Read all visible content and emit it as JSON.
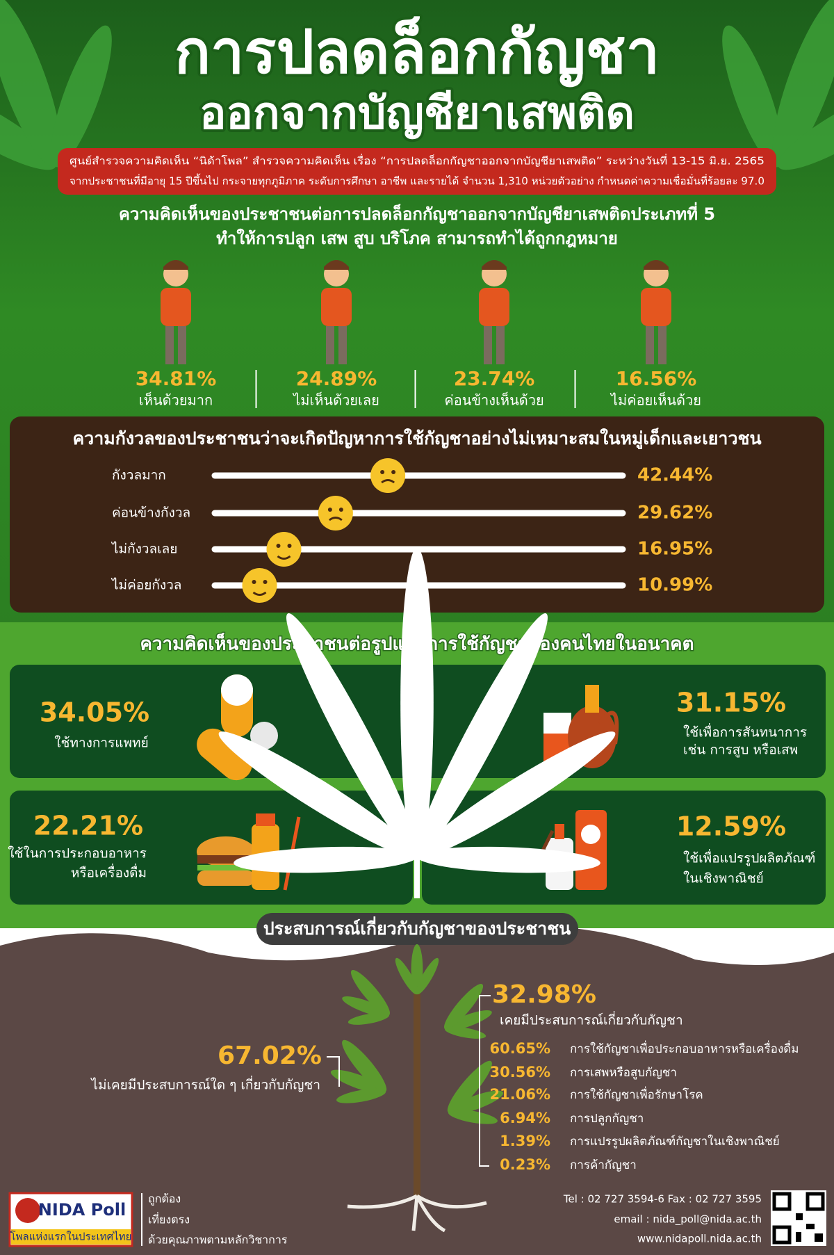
{
  "header": {
    "title_line1": "การปลดล็อกกัญชา",
    "title_line2": "ออกจากบัญชียาเสพติด",
    "survey_note": [
      "ศูนย์สำรวจความคิดเห็น “นิด้าโพล” สำรวจความคิดเห็น เรื่อง “การปลดล็อกกัญชาออกจากบัญชียาเสพติด” ระหว่างวันที่ 13-15 มิ.ย. 2565",
      "จากประชาชนที่มีอายุ 15 ปีขึ้นไป กระจายทุกภูมิภาค ระดับการศึกษา อาชีพ และรายได้ จำนวน 1,310 หน่วยตัวอย่าง กำหนดค่าความเชื่อมั่นที่ร้อยละ 97.0"
    ]
  },
  "opinion": {
    "heading": [
      "ความคิดเห็นของประชาชนต่อการปลดล็อกกัญชาออกจากบัญชียาเสพติดประเภทที่ 5",
      "ทำให้การปลูก เสพ สูบ บริโภค สามารถทำได้ถูกกฎหมาย"
    ],
    "items": [
      {
        "value_label": "34.81%",
        "label": "เห็นด้วยมาก"
      },
      {
        "value_label": "24.89%",
        "label": "ไม่เห็นด้วยเลย"
      },
      {
        "value_label": "23.74%",
        "label": "ค่อนข้างเห็นด้วย"
      },
      {
        "value_label": "16.56%",
        "label": "ไม่ค่อยเห็นด้วย"
      }
    ]
  },
  "worry": {
    "heading": "ความกังวลของประชาชนว่าจะเกิดปัญหาการใช้กัญชาอย่างไม่เหมาะสมในหมู่เด็กและเยาวชน",
    "items": [
      {
        "label": "กังวลมาก",
        "value": 42.44,
        "value_label": "42.44%"
      },
      {
        "label": "ค่อนข้างกังวล",
        "value": 29.62,
        "value_label": "29.62%"
      },
      {
        "label": "ไม่กังวลเลย",
        "value": 16.95,
        "value_label": "16.95%"
      },
      {
        "label": "ไม่ค่อยกังวล",
        "value": 10.99,
        "value_label": "10.99%"
      }
    ]
  },
  "usage": {
    "heading": "ความคิดเห็นของประชาชนต่อรูปแบบการใช้กัญชาของคนไทยในอนาคต",
    "items": [
      {
        "value_label": "34.05%",
        "label": [
          "ใช้ทางการแพทย์"
        ]
      },
      {
        "value_label": "31.15%",
        "label": [
          "ใช้เพื่อการสันทนาการ",
          "เช่น การสูบ หรือเสพ"
        ]
      },
      {
        "value_label": "22.21%",
        "label": [
          "ใช้ในการประกอบอาหาร",
          "หรือเครื่องดื่ม"
        ]
      },
      {
        "value_label": "12.59%",
        "label": [
          "ใช้เพื่อแปรรูปผลิตภัณฑ์",
          "ในเชิงพาณิชย์"
        ]
      }
    ]
  },
  "experience": {
    "heading": "ประสบการณ์เกี่ยวกับกัญชาของประชาชน",
    "never": {
      "value_label": "67.02%",
      "label": "ไม่เคยมีประสบการณ์ใด ๆ เกี่ยวกับกัญชา"
    },
    "ever": {
      "value_label": "32.98%",
      "label": "เคยมีประสบการณ์เกี่ยวกับกัญชา",
      "items": [
        {
          "value_label": "60.65%",
          "label": "การใช้กัญชาเพื่อประกอบอาหารหรือเครื่องดื่ม"
        },
        {
          "value_label": "30.56%",
          "label": "การเสพหรือสูบกัญชา"
        },
        {
          "value_label": "21.06%",
          "label": "การใช้กัญชาเพื่อรักษาโรค"
        },
        {
          "value_label": "6.94%",
          "label": "การปลูกกัญชา"
        },
        {
          "value_label": "1.39%",
          "label": "การแปรรูปผลิตภัณฑ์กัญชาในเชิงพาณิชย์"
        },
        {
          "value_label": "0.23%",
          "label": "การค้ากัญชา"
        }
      ]
    }
  },
  "footer": {
    "logo": "NIDA Poll",
    "tagline": "โพลแห่งแรกในประเทศไทย",
    "motto": [
      "ถูกต้อง",
      "เที่ยงตรง",
      "ด้วยคุณภาพตามหลักวิชาการ"
    ],
    "contact": [
      "Tel : 02 727 3594-6 Fax : 02 727 3595",
      "email : nida_poll@nida.ac.th",
      "www.nidapoll.nida.ac.th"
    ]
  }
}
